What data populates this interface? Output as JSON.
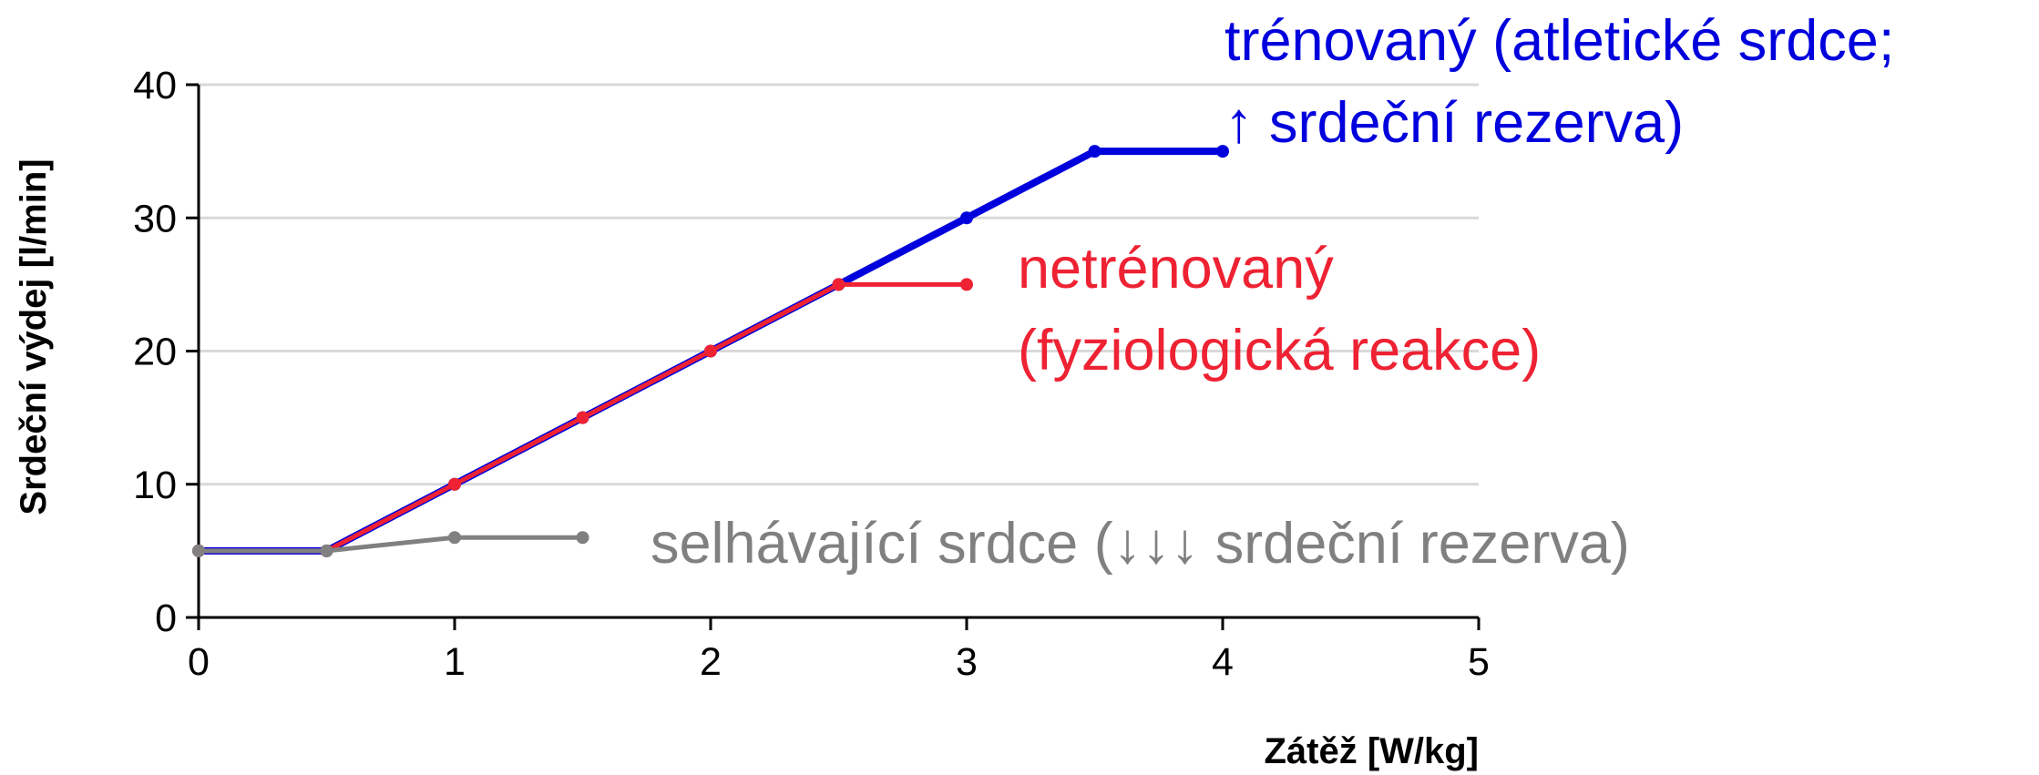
{
  "chart_data": {
    "type": "line",
    "x_label": "Zátěž [W/kg]",
    "y_label": "Srdeční výdej [l/min]",
    "xlim": [
      0,
      5
    ],
    "xticks": [
      0,
      1,
      2,
      3,
      4,
      5
    ],
    "ylim": [
      0,
      40
    ],
    "yticks": [
      0,
      10,
      20,
      30,
      40
    ],
    "grid": true,
    "series": [
      {
        "name": "trénovaný (atletické srdce;\n↑ srdeční rezerva)",
        "color": "#0000dd",
        "x": [
          0,
          0.5,
          1,
          1.5,
          2,
          2.5,
          3,
          3.5,
          4
        ],
        "values": [
          5,
          5,
          10,
          15,
          20,
          25,
          30,
          35,
          35
        ]
      },
      {
        "name": "netrénovaný\n(fyziologická reakce)",
        "color": "#ee2233",
        "x": [
          0,
          0.5,
          1,
          1.5,
          2,
          2.5,
          3
        ],
        "values": [
          5,
          5,
          10,
          15,
          20,
          25,
          25
        ]
      },
      {
        "name": "selhávající srdce (↓↓↓ srdeční rezerva)",
        "color": "#808080",
        "x": [
          0,
          0.5,
          1,
          1.5
        ],
        "values": [
          5,
          5,
          6,
          6
        ]
      }
    ]
  }
}
